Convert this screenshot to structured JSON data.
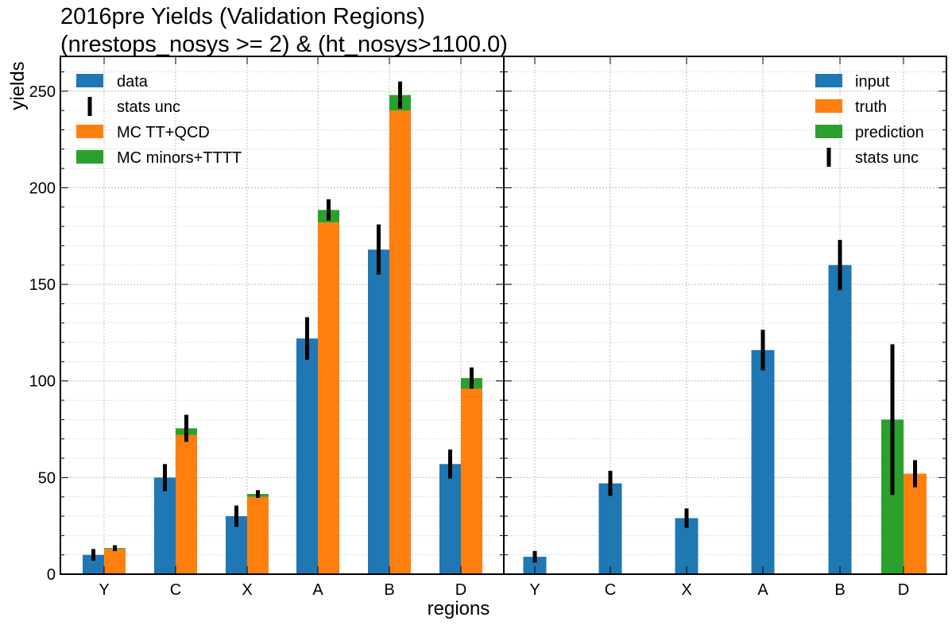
{
  "title_line1": "2016pre Yields (Validation Regions)",
  "title_line2": "(nrestops_nosys >= 2) & (ht_nosys>1100.0)",
  "xlabel": "regions",
  "ylabel": "yields",
  "colors": {
    "blue": "#1f77b4",
    "orange": "#ff7f0e",
    "green": "#2ca02c",
    "grid": "#b0b0b0",
    "err": "#000000"
  },
  "chart_data": [
    {
      "type": "bar",
      "panel": "left",
      "categories": [
        "Y",
        "C",
        "X",
        "A",
        "B",
        "D"
      ],
      "ylim": [
        0,
        268
      ],
      "yticks": [
        0,
        50,
        100,
        150,
        200,
        250
      ],
      "series": [
        {
          "name": "data",
          "values": [
            10,
            50,
            30,
            122,
            168,
            57
          ],
          "errors": [
            3,
            7,
            5.5,
            11,
            13,
            7.5
          ]
        },
        {
          "name": "MC TT+QCD",
          "values": [
            13,
            72,
            40,
            182,
            240,
            96
          ]
        },
        {
          "name": "MC minors+TTTT",
          "values": [
            0.5,
            3.5,
            1.5,
            6.5,
            8,
            5.5
          ],
          "stacked_on": "MC TT+QCD"
        },
        {
          "name": "MC total stats unc",
          "errors": [
            1.5,
            7,
            2,
            5.5,
            7,
            5.5
          ]
        }
      ],
      "legend": {
        "position": "top-left",
        "entries": [
          "data",
          "stats unc",
          "MC TT+QCD",
          "MC minors+TTTT"
        ]
      }
    },
    {
      "type": "bar",
      "panel": "right",
      "categories": [
        "Y",
        "C",
        "X",
        "A",
        "B",
        "D"
      ],
      "ylim": [
        0,
        268
      ],
      "series": [
        {
          "name": "input",
          "values": [
            9,
            47,
            29,
            116,
            160,
            null
          ],
          "errors": [
            3,
            6.5,
            5,
            10.5,
            13,
            null
          ]
        },
        {
          "name": "prediction",
          "values": [
            null,
            null,
            null,
            null,
            null,
            80
          ],
          "errors": [
            null,
            null,
            null,
            null,
            null,
            39
          ]
        },
        {
          "name": "truth",
          "values": [
            null,
            null,
            null,
            null,
            null,
            52
          ],
          "errors": [
            null,
            null,
            null,
            null,
            null,
            7
          ]
        }
      ],
      "legend": {
        "position": "top-right",
        "entries": [
          "input",
          "truth",
          "prediction",
          "stats unc"
        ]
      }
    }
  ]
}
